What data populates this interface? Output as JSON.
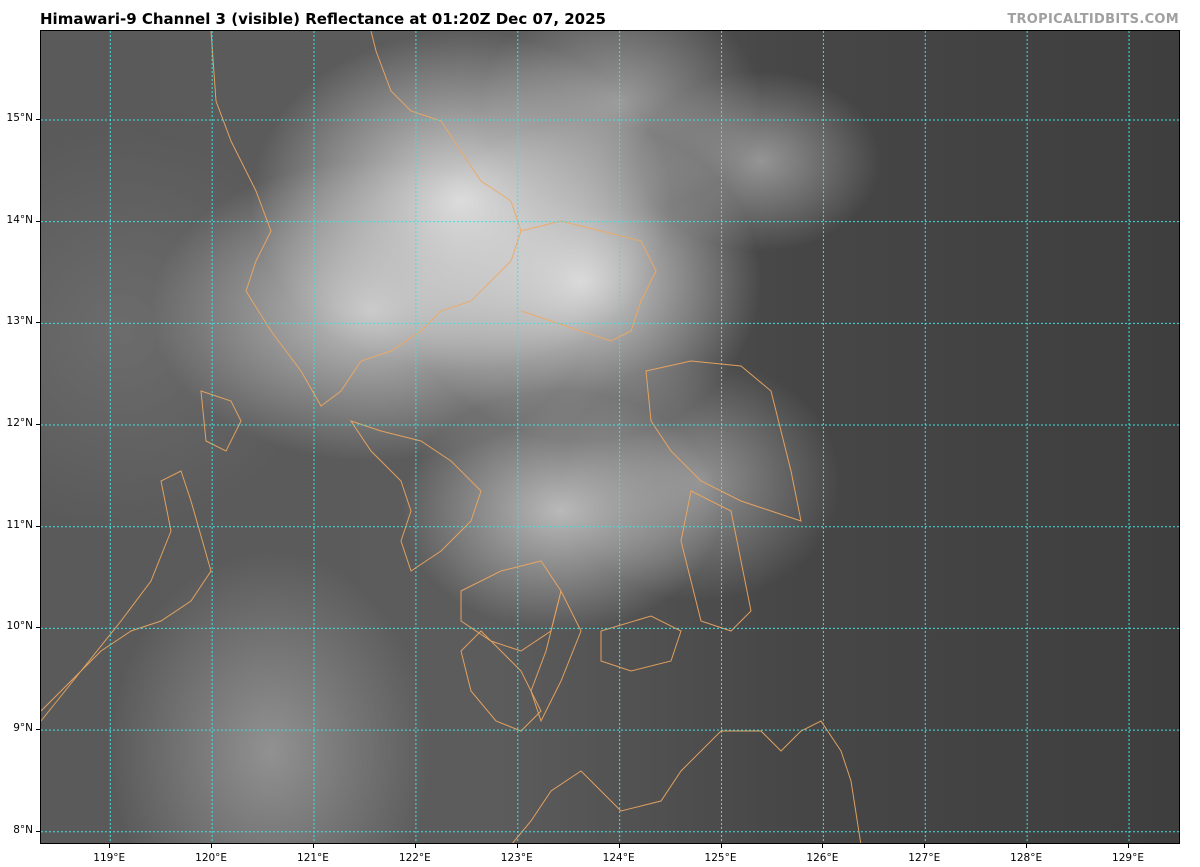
{
  "header": {
    "title": "Himawari-9 Channel 3 (visible) Reflectance at 01:20Z Dec 07, 2025",
    "credit": "TROPICALTIDBITS.COM"
  },
  "map": {
    "projection": "plate carree",
    "imagery": "grayscale visible satellite reflectance",
    "lon_range": [
      118.32,
      129.51
    ],
    "lat_range": [
      7.87,
      15.875
    ],
    "gridlines": true,
    "colors": {
      "gridline": "#40e0e0",
      "coastline": "#f0a860"
    },
    "lon_ticks": [
      {
        "value": 119,
        "label": "119°E"
      },
      {
        "value": 120,
        "label": "120°E"
      },
      {
        "value": 121,
        "label": "121°E"
      },
      {
        "value": 122,
        "label": "122°E"
      },
      {
        "value": 123,
        "label": "123°E"
      },
      {
        "value": 124,
        "label": "124°E"
      },
      {
        "value": 125,
        "label": "125°E"
      },
      {
        "value": 126,
        "label": "126°E"
      },
      {
        "value": 127,
        "label": "127°E"
      },
      {
        "value": 128,
        "label": "128°E"
      },
      {
        "value": 129,
        "label": "129°E"
      }
    ],
    "lat_ticks": [
      {
        "value": 8,
        "label": "8°N"
      },
      {
        "value": 9,
        "label": "9°N"
      },
      {
        "value": 10,
        "label": "10°N"
      },
      {
        "value": 11,
        "label": "11°N"
      },
      {
        "value": 12,
        "label": "12°N"
      },
      {
        "value": 13,
        "label": "13°N"
      },
      {
        "value": 14,
        "label": "14°N"
      },
      {
        "value": 15,
        "label": "15°N"
      }
    ]
  }
}
